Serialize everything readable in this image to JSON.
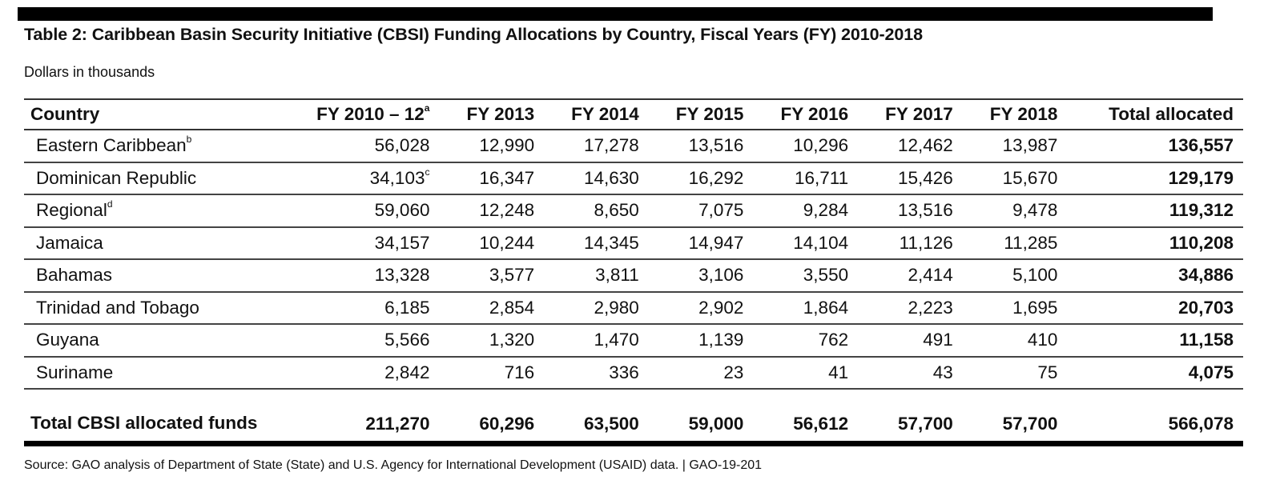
{
  "title": "Table 2: Caribbean Basin Security Initiative (CBSI) Funding Allocations by Country, Fiscal Years (FY) 2010-2018",
  "subtitle": "Dollars in thousands",
  "table": {
    "headers": [
      {
        "label": "Country",
        "note": ""
      },
      {
        "label": "FY 2010 – 12",
        "note": "a"
      },
      {
        "label": "FY 2013",
        "note": ""
      },
      {
        "label": "FY 2014",
        "note": ""
      },
      {
        "label": "FY 2015",
        "note": ""
      },
      {
        "label": "FY 2016",
        "note": ""
      },
      {
        "label": "FY 2017",
        "note": ""
      },
      {
        "label": "FY 2018",
        "note": ""
      },
      {
        "label": "Total allocated",
        "note": ""
      }
    ],
    "rows": [
      {
        "country": "Eastern Caribbean",
        "country_note": "b",
        "fy2010_12": "56,028",
        "fy2010_12_note": "",
        "fy2013": "12,990",
        "fy2014": "17,278",
        "fy2015": "13,516",
        "fy2016": "10,296",
        "fy2017": "12,462",
        "fy2018": "13,987",
        "total": "136,557"
      },
      {
        "country": "Dominican Republic",
        "country_note": "",
        "fy2010_12": "34,103",
        "fy2010_12_note": "c",
        "fy2013": "16,347",
        "fy2014": "14,630",
        "fy2015": "16,292",
        "fy2016": "16,711",
        "fy2017": "15,426",
        "fy2018": "15,670",
        "total": "129,179"
      },
      {
        "country": "Regional",
        "country_note": "d",
        "fy2010_12": "59,060",
        "fy2010_12_note": "",
        "fy2013": "12,248",
        "fy2014": "8,650",
        "fy2015": "7,075",
        "fy2016": "9,284",
        "fy2017": "13,516",
        "fy2018": "9,478",
        "total": "119,312"
      },
      {
        "country": "Jamaica",
        "country_note": "",
        "fy2010_12": "34,157",
        "fy2010_12_note": "",
        "fy2013": "10,244",
        "fy2014": "14,345",
        "fy2015": "14,947",
        "fy2016": "14,104",
        "fy2017": "11,126",
        "fy2018": "11,285",
        "total": "110,208"
      },
      {
        "country": "Bahamas",
        "country_note": "",
        "fy2010_12": "13,328",
        "fy2010_12_note": "",
        "fy2013": "3,577",
        "fy2014": "3,811",
        "fy2015": "3,106",
        "fy2016": "3,550",
        "fy2017": "2,414",
        "fy2018": "5,100",
        "total": "34,886"
      },
      {
        "country": "Trinidad and Tobago",
        "country_note": "",
        "fy2010_12": "6,185",
        "fy2010_12_note": "",
        "fy2013": "2,854",
        "fy2014": "2,980",
        "fy2015": "2,902",
        "fy2016": "1,864",
        "fy2017": "2,223",
        "fy2018": "1,695",
        "total": "20,703"
      },
      {
        "country": "Guyana",
        "country_note": "",
        "fy2010_12": "5,566",
        "fy2010_12_note": "",
        "fy2013": "1,320",
        "fy2014": "1,470",
        "fy2015": "1,139",
        "fy2016": "762",
        "fy2017": "491",
        "fy2018": "410",
        "total": "11,158"
      },
      {
        "country": "Suriname",
        "country_note": "",
        "fy2010_12": "2,842",
        "fy2010_12_note": "",
        "fy2013": "716",
        "fy2014": "336",
        "fy2015": "23",
        "fy2016": "41",
        "fy2017": "43",
        "fy2018": "75",
        "total": "4,075"
      }
    ],
    "grand_total": {
      "label": "Total CBSI allocated funds",
      "fy2010_12": "211,270",
      "fy2013": "60,296",
      "fy2014": "63,500",
      "fy2015": "59,000",
      "fy2016": "56,612",
      "fy2017": "57,700",
      "fy2018": "57,700",
      "total": "566,078"
    }
  },
  "source": "Source: GAO analysis of Department of State (State) and U.S. Agency for International Development (USAID) data. | GAO-19-201"
}
